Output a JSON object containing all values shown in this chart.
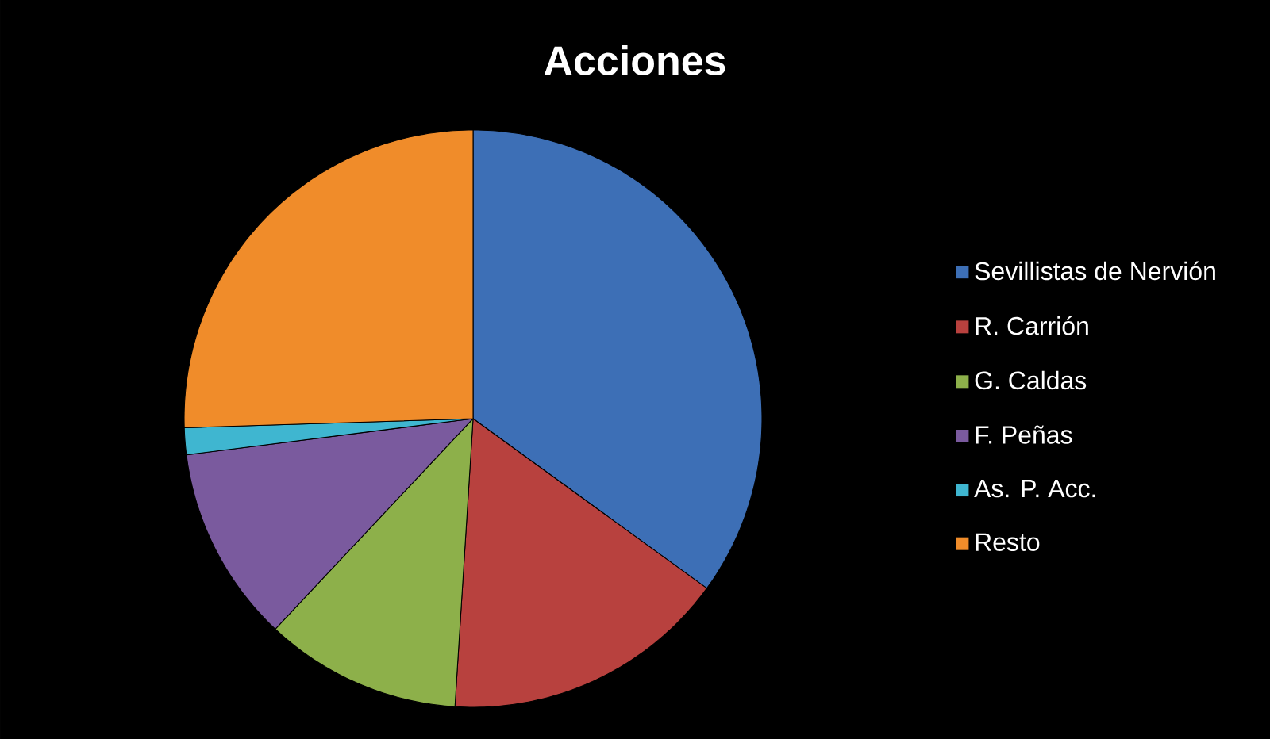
{
  "chart_data": {
    "type": "pie",
    "title": "Acciones",
    "categories": [
      "Sevillistas de Nervión",
      "R. Carrión",
      "G. Caldas",
      "F. Peñas",
      "As. P. Acc.",
      "Resto"
    ],
    "values": [
      35,
      16,
      11,
      11,
      1.5,
      25.5
    ],
    "colors": [
      "#3d6fb6",
      "#b8413e",
      "#8db04a",
      "#7a5a9e",
      "#3fb6d0",
      "#f08c2a"
    ],
    "legend": "right"
  }
}
